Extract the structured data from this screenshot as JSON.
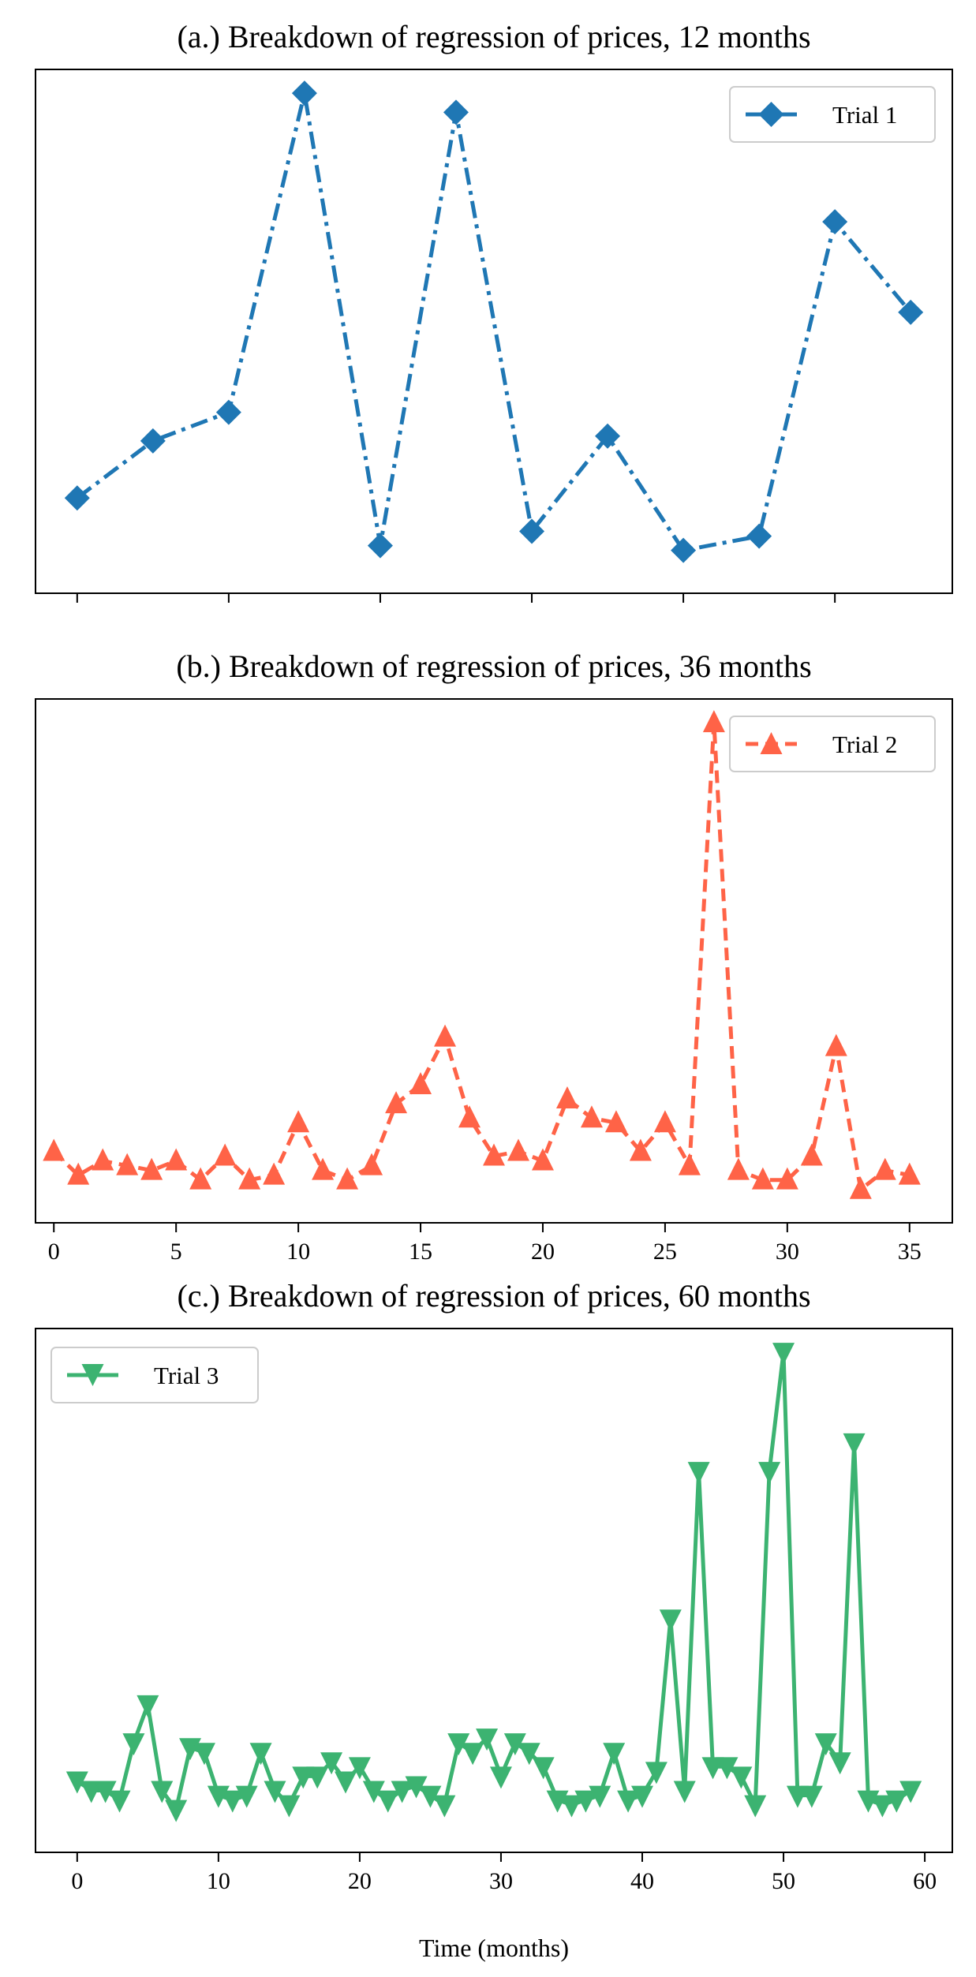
{
  "figure": {
    "xlabel": "Time (months)"
  },
  "chart_data": [
    {
      "type": "line",
      "title": "(a.) Breakdown of regression of prices, 12 months",
      "xlabel": "",
      "ylabel": "",
      "xlim": [
        -0.55,
        11.55
      ],
      "ylim": [
        -0.5,
        10.5
      ],
      "xticks": [
        0,
        2,
        4,
        6,
        8,
        10
      ],
      "show_xtick_labels": false,
      "show_yticks": false,
      "grid": false,
      "legend_position": "top-right",
      "series": [
        {
          "name": "Trial 1",
          "color": "#1f77b4",
          "line_style": "dash-dot",
          "marker": "diamond",
          "x": [
            0,
            1,
            2,
            3,
            4,
            5,
            6,
            7,
            8,
            9,
            10,
            11
          ],
          "values": [
            1.5,
            2.7,
            3.3,
            10.0,
            0.5,
            9.6,
            0.8,
            2.8,
            0.4,
            0.7,
            7.3,
            5.4
          ]
        }
      ]
    },
    {
      "type": "line",
      "title": "(b.) Breakdown of regression of prices, 36 months",
      "xlabel": "",
      "ylabel": "",
      "xlim": [
        -0.75,
        36.75
      ],
      "ylim": [
        -0.5,
        10.5
      ],
      "xticks": [
        0,
        5,
        10,
        15,
        20,
        25,
        30,
        35
      ],
      "show_xtick_labels": true,
      "show_yticks": false,
      "grid": false,
      "legend_position": "top-right",
      "series": [
        {
          "name": "Trial 2",
          "color": "#ff6347",
          "line_style": "dashed",
          "marker": "triangle-up",
          "x": [
            0,
            1,
            2,
            3,
            4,
            5,
            6,
            7,
            8,
            9,
            10,
            11,
            12,
            13,
            14,
            15,
            16,
            17,
            18,
            19,
            20,
            21,
            22,
            23,
            24,
            25,
            26,
            27,
            28,
            29,
            30,
            31,
            32,
            33,
            34,
            35
          ],
          "values": [
            1.0,
            0.5,
            0.8,
            0.7,
            0.6,
            0.8,
            0.4,
            0.9,
            0.4,
            0.5,
            1.6,
            0.6,
            0.4,
            0.7,
            2.0,
            2.4,
            3.4,
            1.7,
            0.9,
            1.0,
            0.8,
            2.1,
            1.7,
            1.6,
            1.0,
            1.6,
            0.7,
            10.0,
            0.6,
            0.4,
            0.4,
            0.9,
            3.2,
            0.2,
            0.6,
            0.5
          ]
        }
      ]
    },
    {
      "type": "line",
      "title": "(c.) Breakdown of regression of prices, 60 months",
      "xlabel": "Time (months)",
      "ylabel": "",
      "xlim": [
        -2.95,
        61.95
      ],
      "ylim": [
        -0.5,
        10.5
      ],
      "xticks": [
        0,
        10,
        20,
        30,
        40,
        50,
        60
      ],
      "show_xtick_labels": true,
      "show_yticks": false,
      "grid": false,
      "legend_position": "top-left",
      "series": [
        {
          "name": "Trial 3",
          "color": "#3cb371",
          "line_style": "solid",
          "marker": "triangle-down",
          "x": [
            0,
            1,
            2,
            3,
            4,
            5,
            6,
            7,
            8,
            9,
            10,
            11,
            12,
            13,
            14,
            15,
            16,
            17,
            18,
            19,
            20,
            21,
            22,
            23,
            24,
            25,
            26,
            27,
            28,
            29,
            30,
            31,
            32,
            33,
            34,
            35,
            36,
            37,
            38,
            39,
            40,
            41,
            42,
            43,
            44,
            45,
            46,
            47,
            48,
            49,
            50,
            51,
            52,
            53,
            54,
            55,
            56,
            57,
            58,
            59
          ],
          "values": [
            1.0,
            0.8,
            0.8,
            0.6,
            1.8,
            2.6,
            0.8,
            0.4,
            1.7,
            1.6,
            0.7,
            0.6,
            0.7,
            1.6,
            0.8,
            0.5,
            1.1,
            1.1,
            1.4,
            1.0,
            1.3,
            0.8,
            0.6,
            0.8,
            0.9,
            0.7,
            0.5,
            1.8,
            1.6,
            1.9,
            1.1,
            1.8,
            1.6,
            1.3,
            0.6,
            0.5,
            0.6,
            0.7,
            1.6,
            0.6,
            0.7,
            1.2,
            4.4,
            0.8,
            7.5,
            1.3,
            1.3,
            1.1,
            0.5,
            7.5,
            10.0,
            0.7,
            0.7,
            1.8,
            1.4,
            8.1,
            0.6,
            0.5,
            0.6,
            0.8
          ]
        }
      ]
    }
  ]
}
